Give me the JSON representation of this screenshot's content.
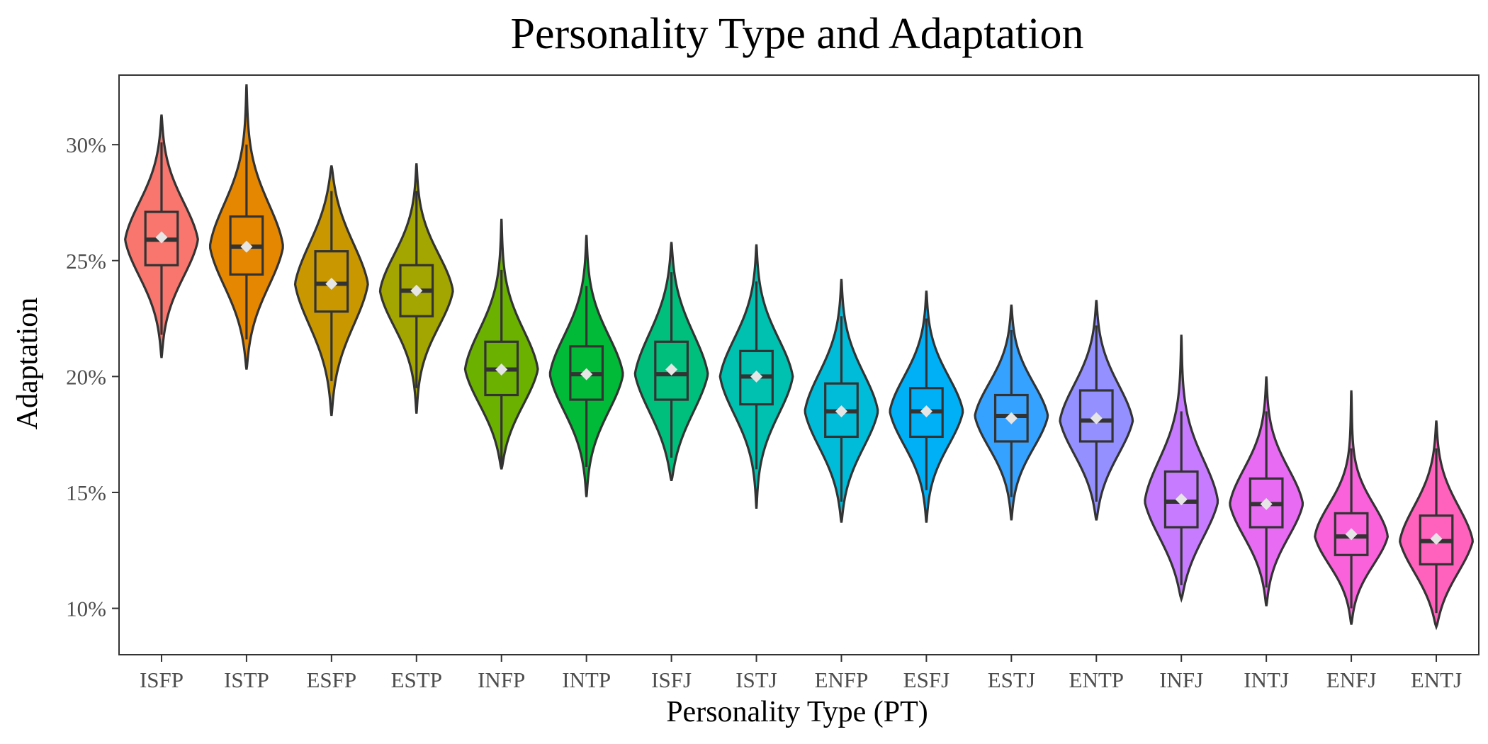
{
  "chart_data": {
    "type": "violin",
    "title": "Personality Type and Adaptation",
    "xlabel": "Personality Type (PT)",
    "ylabel": "Adaptation",
    "ylim": [
      8,
      33
    ],
    "yticks": [
      10,
      15,
      20,
      25,
      30
    ],
    "ytick_labels": [
      "10%",
      "15%",
      "20%",
      "25%",
      "30%"
    ],
    "grid": false,
    "legend": "none",
    "categories": [
      "ISFP",
      "ISTP",
      "ESFP",
      "ESTP",
      "INFP",
      "INTP",
      "ISFJ",
      "ISTJ",
      "ENFP",
      "ESFJ",
      "ESTJ",
      "ENTP",
      "INFJ",
      "INTJ",
      "ENFJ",
      "ENTJ"
    ],
    "series": [
      {
        "category": "ISFP",
        "color": "#F8766D",
        "min": 20.8,
        "max": 31.3,
        "q1": 24.8,
        "median": 25.9,
        "q3": 27.1,
        "mean": 26.0,
        "whisker_low": 21.8,
        "whisker_high": 30.1
      },
      {
        "category": "ISTP",
        "color": "#E58700",
        "min": 20.3,
        "max": 32.6,
        "q1": 24.4,
        "median": 25.6,
        "q3": 26.9,
        "mean": 25.6,
        "whisker_low": 21.6,
        "whisker_high": 30.0
      },
      {
        "category": "ESFP",
        "color": "#C99800",
        "min": 18.3,
        "max": 29.1,
        "q1": 22.8,
        "median": 24.0,
        "q3": 25.4,
        "mean": 24.0,
        "whisker_low": 19.8,
        "whisker_high": 28.0
      },
      {
        "category": "ESTP",
        "color": "#A3A500",
        "min": 18.4,
        "max": 29.2,
        "q1": 22.6,
        "median": 23.7,
        "q3": 24.8,
        "mean": 23.7,
        "whisker_low": 19.5,
        "whisker_high": 28.0
      },
      {
        "category": "INFP",
        "color": "#6BB100",
        "min": 16.0,
        "max": 26.8,
        "q1": 19.2,
        "median": 20.3,
        "q3": 21.5,
        "mean": 20.3,
        "whisker_low": 16.2,
        "whisker_high": 24.6
      },
      {
        "category": "INTP",
        "color": "#00BA38",
        "min": 14.8,
        "max": 26.1,
        "q1": 19.0,
        "median": 20.1,
        "q3": 21.3,
        "mean": 20.1,
        "whisker_low": 16.1,
        "whisker_high": 23.9
      },
      {
        "category": "ISFJ",
        "color": "#00BF7D",
        "min": 15.5,
        "max": 25.8,
        "q1": 19.0,
        "median": 20.1,
        "q3": 21.5,
        "mean": 20.3,
        "whisker_low": 16.5,
        "whisker_high": 24.5
      },
      {
        "category": "ISTJ",
        "color": "#00C0AF",
        "min": 14.3,
        "max": 25.7,
        "q1": 18.8,
        "median": 20.0,
        "q3": 21.1,
        "mean": 20.0,
        "whisker_low": 16.0,
        "whisker_high": 24.1
      },
      {
        "category": "ENFP",
        "color": "#00BCD8",
        "min": 13.7,
        "max": 24.2,
        "q1": 17.4,
        "median": 18.5,
        "q3": 19.7,
        "mean": 18.5,
        "whisker_low": 14.6,
        "whisker_high": 22.6
      },
      {
        "category": "ESFJ",
        "color": "#00B0F6",
        "min": 13.7,
        "max": 23.7,
        "q1": 17.4,
        "median": 18.5,
        "q3": 19.5,
        "mean": 18.5,
        "whisker_low": 15.1,
        "whisker_high": 22.5
      },
      {
        "category": "ESTJ",
        "color": "#35A2FF",
        "min": 13.8,
        "max": 23.1,
        "q1": 17.2,
        "median": 18.3,
        "q3": 19.2,
        "mean": 18.2,
        "whisker_low": 14.8,
        "whisker_high": 22.0
      },
      {
        "category": "ENTP",
        "color": "#9590FF",
        "min": 13.8,
        "max": 23.3,
        "q1": 17.2,
        "median": 18.1,
        "q3": 19.4,
        "mean": 18.2,
        "whisker_low": 14.6,
        "whisker_high": 22.2
      },
      {
        "category": "INFJ",
        "color": "#C77CFF",
        "min": 10.4,
        "max": 21.8,
        "q1": 13.5,
        "median": 14.6,
        "q3": 15.9,
        "mean": 14.7,
        "whisker_low": 11.0,
        "whisker_high": 18.5
      },
      {
        "category": "INTJ",
        "color": "#E76BF3",
        "min": 10.1,
        "max": 20.0,
        "q1": 13.5,
        "median": 14.5,
        "q3": 15.6,
        "mean": 14.5,
        "whisker_low": 10.9,
        "whisker_high": 18.5
      },
      {
        "category": "ENFJ",
        "color": "#FA62DB",
        "min": 9.3,
        "max": 19.4,
        "q1": 12.3,
        "median": 13.1,
        "q3": 14.1,
        "mean": 13.2,
        "whisker_low": 10.0,
        "whisker_high": 16.9
      },
      {
        "category": "ENTJ",
        "color": "#FF62BC",
        "min": 9.2,
        "max": 18.1,
        "q1": 11.9,
        "median": 12.9,
        "q3": 14.0,
        "mean": 13.0,
        "whisker_low": 9.8,
        "whisker_high": 16.9
      }
    ]
  }
}
